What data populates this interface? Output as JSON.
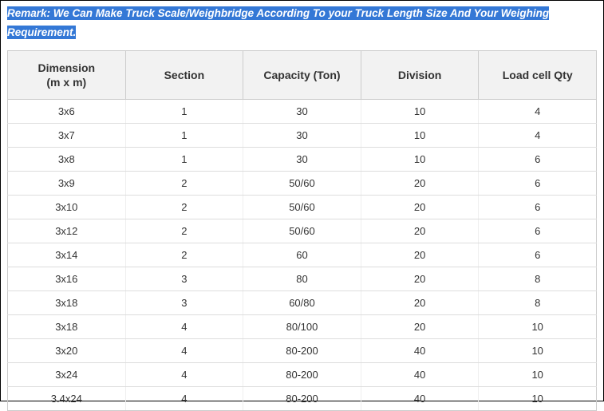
{
  "remark": {
    "label": "Remark:",
    "text": " We Can Make Truck Scale/Weighbridge According To your Truck Length Size And Your Weighing Requirement.",
    "highlight_bg": "#3478d6",
    "highlight_fg": "#ffffff",
    "fontsize": 13.5,
    "italic": true,
    "bold": true
  },
  "table": {
    "columns": [
      "Dimension\n(m x m)",
      "Section",
      "Capacity (Ton)",
      "Division",
      "Load cell Qty"
    ],
    "header_bg": "#f2f2f2",
    "header_fg": "#333333",
    "header_fontsize": 14,
    "cell_fontsize": 13,
    "border_color": "#cccccc",
    "row_border_color": "#dddddd",
    "rows": [
      [
        "3x6",
        "1",
        "30",
        "10",
        "4"
      ],
      [
        "3x7",
        "1",
        "30",
        "10",
        "4"
      ],
      [
        "3x8",
        "1",
        "30",
        "10",
        "6"
      ],
      [
        "3x9",
        "2",
        "50/60",
        "20",
        "6"
      ],
      [
        "3x10",
        "2",
        "50/60",
        "20",
        "6"
      ],
      [
        "3x12",
        "2",
        "50/60",
        "20",
        "6"
      ],
      [
        "3x14",
        "2",
        "60",
        "20",
        "6"
      ],
      [
        "3x16",
        "3",
        "80",
        "20",
        "8"
      ],
      [
        "3x18",
        "3",
        "60/80",
        "20",
        "8"
      ],
      [
        "3x18",
        "4",
        "80/100",
        "20",
        "10"
      ],
      [
        "3x20",
        "4",
        "80-200",
        "40",
        "10"
      ],
      [
        "3x24",
        "4",
        "80-200",
        "40",
        "10"
      ],
      [
        "3.4x24",
        "4",
        "80-200",
        "40",
        "10"
      ]
    ]
  }
}
